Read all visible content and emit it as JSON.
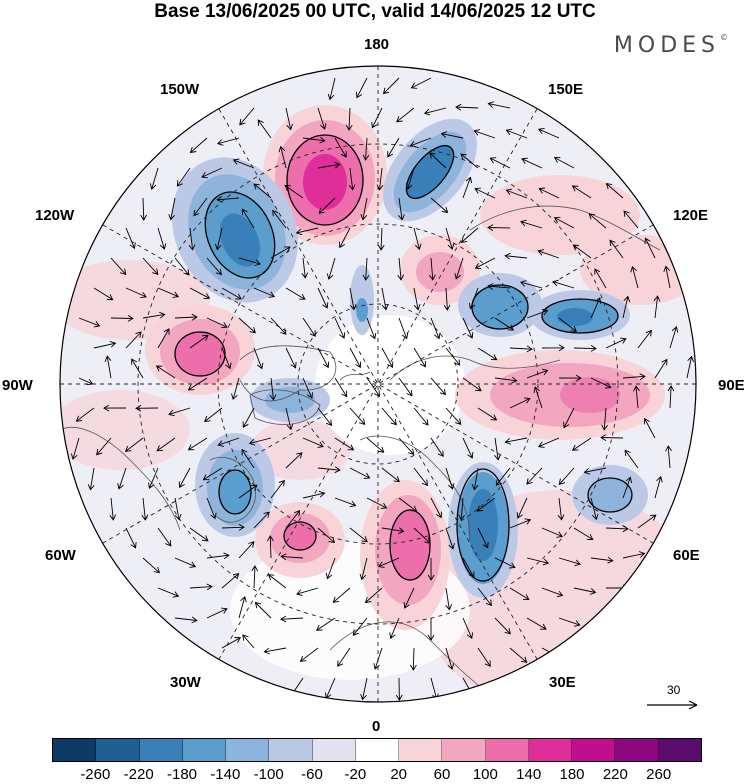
{
  "title": "Base 13/06/2025 00 UTC, valid 14/06/2025 12 UTC",
  "logo": {
    "text": "MODES",
    "mark": "©"
  },
  "longitude_labels": {
    "n180": "180",
    "e150": "150E",
    "e120": "120E",
    "e90": "90E",
    "e60": "60E",
    "e30": "30E",
    "s0": "0",
    "w30": "30W",
    "w60": "60W",
    "w90": "90W",
    "w120": "120W",
    "w150": "150W"
  },
  "vector_scale": {
    "label": "30"
  },
  "colorbar": {
    "labels": [
      "-260",
      "-220",
      "-180",
      "-140",
      "-100",
      "-60",
      "-20",
      "20",
      "60",
      "100",
      "140",
      "180",
      "220",
      "260"
    ],
    "colors": [
      "#0d3b66",
      "#1f5f93",
      "#3a80b8",
      "#5b9dcc",
      "#8db4db",
      "#bcc9e6",
      "#e2e2f1",
      "#ffffff",
      "#f8d3d8",
      "#f2a6bf",
      "#ec6fab",
      "#df2d9a",
      "#bf0f8f",
      "#8c067f",
      "#5a0c6f"
    ]
  },
  "colors": {
    "positive": "#ec6fab",
    "negative": "#3a80b8",
    "frame": "#000000"
  }
}
